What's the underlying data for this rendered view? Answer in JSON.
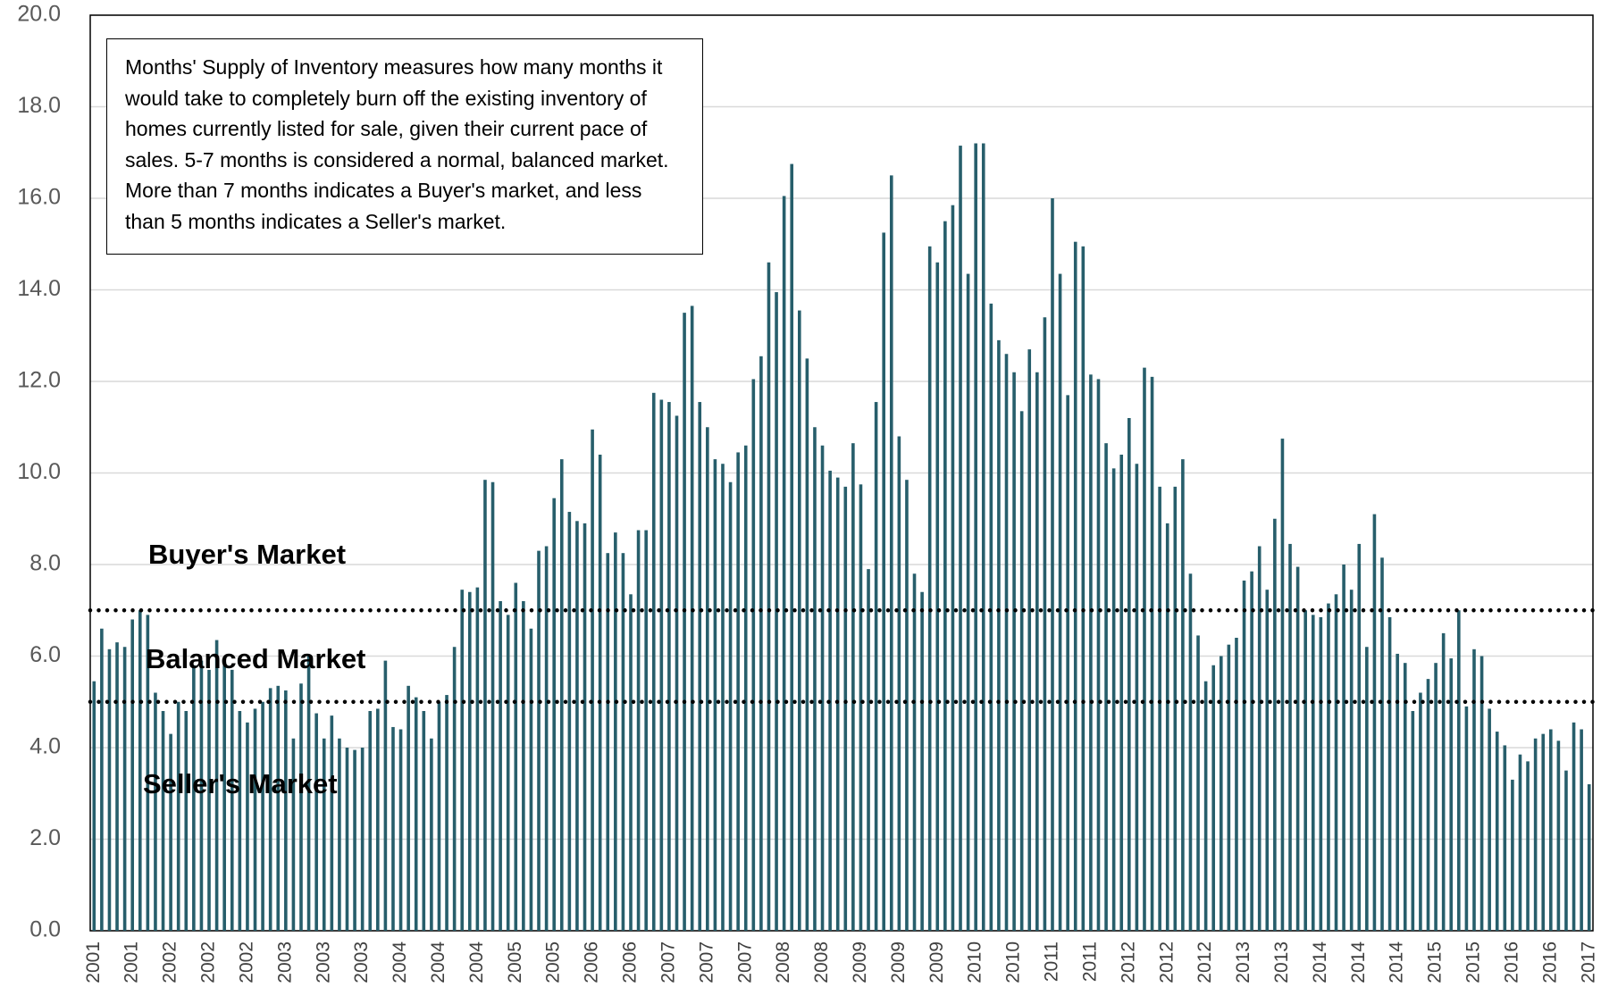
{
  "chart_data": {
    "type": "bar",
    "annotation": "Months' Supply of Inventory measures how many months it would take to completely burn off the existing inventory of homes currently listed for sale, given their current pace of sales.  5-7 months is considered a normal, balanced market.  More than 7 months indicates a Buyer's market, and less than 5 months indicates a Seller's market.",
    "zone_labels": [
      "Buyer's Market",
      "Balanced Market",
      "Seller's Market"
    ],
    "reference_lines": [
      7,
      5
    ],
    "color": "#275e6b",
    "grid": true,
    "ylim": [
      0,
      20
    ],
    "yticks": [
      {
        "value": 0,
        "label": "0.0"
      },
      {
        "value": 2,
        "label": "2.0"
      },
      {
        "value": 4,
        "label": "4.0"
      },
      {
        "value": 6,
        "label": "6.0"
      },
      {
        "value": 8,
        "label": "8.0"
      },
      {
        "value": 10,
        "label": "10.0"
      },
      {
        "value": 12,
        "label": "12.0"
      },
      {
        "value": 14,
        "label": "14.0"
      },
      {
        "value": 16,
        "label": "16.0"
      },
      {
        "value": 18,
        "label": "18.0"
      },
      {
        "value": 20,
        "label": "20.0"
      }
    ],
    "categories": [
      "2001",
      null,
      null,
      null,
      null,
      "2001",
      null,
      null,
      null,
      null,
      "2002",
      null,
      null,
      null,
      null,
      "2002",
      null,
      null,
      null,
      null,
      "2002",
      null,
      null,
      null,
      null,
      "2003",
      null,
      null,
      null,
      null,
      "2003",
      null,
      null,
      null,
      null,
      "2003",
      null,
      null,
      null,
      null,
      "2004",
      null,
      null,
      null,
      null,
      "2004",
      null,
      null,
      null,
      null,
      "2004",
      null,
      null,
      null,
      null,
      "2005",
      null,
      null,
      null,
      null,
      "2005",
      null,
      null,
      null,
      null,
      "2006",
      null,
      null,
      null,
      null,
      "2006",
      null,
      null,
      null,
      null,
      "2007",
      null,
      null,
      null,
      null,
      "2007",
      null,
      null,
      null,
      null,
      "2007",
      null,
      null,
      null,
      null,
      "2008",
      null,
      null,
      null,
      null,
      "2008",
      null,
      null,
      null,
      null,
      "2009",
      null,
      null,
      null,
      null,
      "2009",
      null,
      null,
      null,
      null,
      "2009",
      null,
      null,
      null,
      null,
      "2010",
      null,
      null,
      null,
      null,
      "2010",
      null,
      null,
      null,
      null,
      "2011",
      null,
      null,
      null,
      null,
      "2011",
      null,
      null,
      null,
      null,
      "2012",
      null,
      null,
      null,
      null,
      "2012",
      null,
      null,
      null,
      null,
      "2012",
      null,
      null,
      null,
      null,
      "2013",
      null,
      null,
      null,
      null,
      "2013",
      null,
      null,
      null,
      null,
      "2014",
      null,
      null,
      null,
      null,
      "2014",
      null,
      null,
      null,
      null,
      "2014",
      null,
      null,
      null,
      null,
      "2015",
      null,
      null,
      null,
      null,
      "2015",
      null,
      null,
      null,
      null,
      "2016",
      null,
      null,
      null,
      null,
      "2016",
      null,
      null,
      null,
      null,
      "2017"
    ],
    "values": [
      5.45,
      6.6,
      6.15,
      6.3,
      6.2,
      6.8,
      7.0,
      6.9,
      5.2,
      4.8,
      4.3,
      5.0,
      4.8,
      5.8,
      5.9,
      5.7,
      6.35,
      5.8,
      5.7,
      4.8,
      4.55,
      4.85,
      5.0,
      5.3,
      5.35,
      5.25,
      4.2,
      5.4,
      6.0,
      4.75,
      4.2,
      4.7,
      4.2,
      4.0,
      3.95,
      4.0,
      4.8,
      4.85,
      5.9,
      4.45,
      4.4,
      5.35,
      5.1,
      4.8,
      4.2,
      5.0,
      5.15,
      6.2,
      7.45,
      7.4,
      7.5,
      9.85,
      9.8,
      7.2,
      6.9,
      7.6,
      7.2,
      6.6,
      8.3,
      8.4,
      9.45,
      10.3,
      9.15,
      8.95,
      8.9,
      10.95,
      10.4,
      8.25,
      8.7,
      8.25,
      7.35,
      8.75,
      8.75,
      11.75,
      11.6,
      11.55,
      11.25,
      13.5,
      13.65,
      11.55,
      11.0,
      10.3,
      10.2,
      9.8,
      10.45,
      10.6,
      12.05,
      12.55,
      14.6,
      13.95,
      16.05,
      16.75,
      13.55,
      12.5,
      11.0,
      10.6,
      10.05,
      9.9,
      9.7,
      10.65,
      9.75,
      7.9,
      11.55,
      15.25,
      16.5,
      10.8,
      9.85,
      7.8,
      7.4,
      14.95,
      14.6,
      15.5,
      15.85,
      17.15,
      14.35,
      17.2,
      17.2,
      13.7,
      12.9,
      12.6,
      12.2,
      11.35,
      12.7,
      12.2,
      13.4,
      16.0,
      14.35,
      11.7,
      15.05,
      14.95,
      12.15,
      12.05,
      10.65,
      10.1,
      10.4,
      11.2,
      10.2,
      12.3,
      12.1,
      9.7,
      8.9,
      9.7,
      10.3,
      7.8,
      6.45,
      5.45,
      5.8,
      6.0,
      6.25,
      6.4,
      7.65,
      7.85,
      8.4,
      7.45,
      9.0,
      10.75,
      8.45,
      7.95,
      7.0,
      6.9,
      6.85,
      7.15,
      7.35,
      8.0,
      7.45,
      8.45,
      6.2,
      9.1,
      8.15,
      6.85,
      6.05,
      5.85,
      4.8,
      5.2,
      5.5,
      5.85,
      6.5,
      5.95,
      7.0,
      4.9,
      6.15,
      6.0,
      4.85,
      4.35,
      4.05,
      3.3,
      3.85,
      3.7,
      4.2,
      4.3,
      4.4,
      4.15,
      3.5,
      4.55,
      4.4,
      3.2
    ]
  }
}
